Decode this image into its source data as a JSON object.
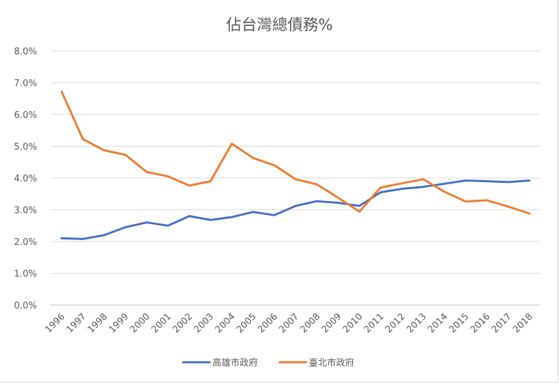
{
  "chart_data": {
    "type": "line",
    "title": "佔台灣總債務%",
    "xlabel": "",
    "ylabel": "",
    "categories": [
      "1996",
      "1997",
      "1998",
      "1999",
      "2000",
      "2001",
      "2002",
      "2003",
      "2004",
      "2005",
      "2006",
      "2007",
      "2008",
      "2009",
      "2010",
      "2011",
      "2012",
      "2013",
      "2014",
      "2015",
      "2016",
      "2017",
      "2018"
    ],
    "y_ticks": [
      "0.0%",
      "1.0%",
      "2.0%",
      "3.0%",
      "4.0%",
      "5.0%",
      "6.0%",
      "7.0%",
      "8.0%"
    ],
    "ylim": [
      0,
      8
    ],
    "grid": true,
    "legend_position": "bottom",
    "series": [
      {
        "name": "高雄市政府",
        "color": "#4472C4",
        "values": [
          2.1,
          2.08,
          2.2,
          2.45,
          2.6,
          2.5,
          2.8,
          2.68,
          2.77,
          2.93,
          2.83,
          3.12,
          3.27,
          3.22,
          3.12,
          3.55,
          3.66,
          3.72,
          3.82,
          3.92,
          3.9,
          3.87,
          3.92
        ]
      },
      {
        "name": "臺北市政府",
        "color": "#ED7D31",
        "values": [
          6.72,
          5.22,
          4.87,
          4.73,
          4.19,
          4.05,
          3.76,
          3.9,
          5.08,
          4.63,
          4.4,
          3.96,
          3.8,
          3.38,
          2.94,
          3.7,
          3.83,
          3.96,
          3.57,
          3.26,
          3.3,
          3.1,
          2.88
        ]
      }
    ]
  }
}
